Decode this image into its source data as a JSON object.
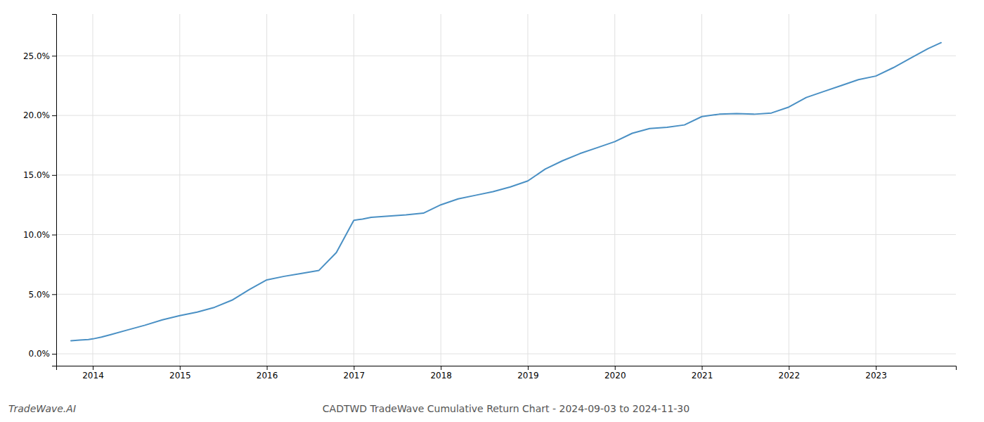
{
  "chart_data": {
    "type": "line",
    "title": "CADTWD TradeWave Cumulative Return Chart - 2024-09-03 to 2024-11-30",
    "annotations": [
      "TradeWave.AI"
    ],
    "color": "#4a90c4",
    "grid": true,
    "x": [
      2013.75,
      2013.85,
      2013.95,
      2014.0,
      2014.1,
      2014.2,
      2014.4,
      2014.6,
      2014.8,
      2015.0,
      2015.2,
      2015.4,
      2015.6,
      2015.8,
      2016.0,
      2016.2,
      2016.4,
      2016.6,
      2016.8,
      2017.0,
      2017.1,
      2017.2,
      2017.4,
      2017.6,
      2017.8,
      2018.0,
      2018.2,
      2018.4,
      2018.6,
      2018.8,
      2019.0,
      2019.2,
      2019.4,
      2019.6,
      2019.8,
      2020.0,
      2020.2,
      2020.4,
      2020.6,
      2020.8,
      2021.0,
      2021.2,
      2021.4,
      2021.6,
      2021.8,
      2022.0,
      2022.2,
      2022.4,
      2022.6,
      2022.8,
      2023.0,
      2023.2,
      2023.4,
      2023.6,
      2023.75
    ],
    "values": [
      1.1,
      1.15,
      1.2,
      1.25,
      1.4,
      1.6,
      2.0,
      2.4,
      2.85,
      3.2,
      3.5,
      3.9,
      4.5,
      5.4,
      6.2,
      6.5,
      6.75,
      7.0,
      8.5,
      11.2,
      11.3,
      11.45,
      11.55,
      11.65,
      11.8,
      12.5,
      13.0,
      13.3,
      13.6,
      14.0,
      14.5,
      15.5,
      16.2,
      16.8,
      17.3,
      17.8,
      18.5,
      18.9,
      19.0,
      19.2,
      19.9,
      20.1,
      20.15,
      20.1,
      20.2,
      20.7,
      21.5,
      22.0,
      22.5,
      23.0,
      23.3,
      24.0,
      24.8,
      25.6,
      26.1
    ],
    "xlim": [
      2013.58,
      2023.92
    ],
    "xticks": [
      2014,
      2015,
      2016,
      2017,
      2018,
      2019,
      2020,
      2021,
      2022,
      2023
    ],
    "ylim": [
      -1.0,
      28.5
    ],
    "yticks": [
      {
        "value": 0.0,
        "label": "0.0%"
      },
      {
        "value": 5.0,
        "label": "5.0%"
      },
      {
        "value": 10.0,
        "label": "10.0%"
      },
      {
        "value": 15.0,
        "label": "15.0%"
      },
      {
        "value": 20.0,
        "label": "20.0%"
      },
      {
        "value": 25.0,
        "label": "25.0%"
      }
    ]
  }
}
